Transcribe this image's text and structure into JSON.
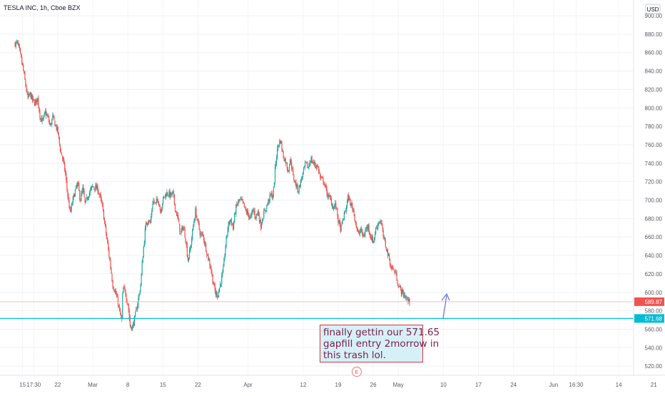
{
  "header": {
    "symbol_label": "TESLA INC, 1h, Cboe BZX",
    "currency_label": "USD"
  },
  "colors": {
    "up": "#26a69a",
    "down": "#ef5350",
    "support": "#00bcd4",
    "last_price_bg": "#ef5350",
    "annotation_border": "#d9363e",
    "annotation_bg": "#d6f0f7",
    "annotation_text": "#7a1f4a",
    "arrow": "#6f7bd8",
    "grid": "#eef0f3"
  },
  "price_axis": {
    "ticks": [
      "900.00",
      "880.00",
      "860.00",
      "840.00",
      "820.00",
      "800.00",
      "780.00",
      "760.00",
      "740.00",
      "720.00",
      "700.00",
      "680.00",
      "660.00",
      "640.00",
      "620.00",
      "600.00",
      "580.00",
      "560.00",
      "540.00",
      "520.00"
    ]
  },
  "time_axis": {
    "labels": [
      {
        "text": "15",
        "t": -14
      },
      {
        "text": "17:30",
        "t": -11.8
      },
      {
        "text": "22",
        "t": -7
      },
      {
        "text": "Mar",
        "t": 0
      },
      {
        "text": "8",
        "t": 7
      },
      {
        "text": "15",
        "t": 14
      },
      {
        "text": "22",
        "t": 21
      },
      {
        "text": "Apr",
        "t": 31
      },
      {
        "text": "12",
        "t": 42
      },
      {
        "text": "19",
        "t": 49
      },
      {
        "text": "26",
        "t": 56
      },
      {
        "text": "May",
        "t": 61
      },
      {
        "text": "10",
        "t": 70
      },
      {
        "text": "17",
        "t": 77
      },
      {
        "text": "24",
        "t": 84
      },
      {
        "text": "Jun",
        "t": 92
      },
      {
        "text": "16:30",
        "t": 96.5
      },
      {
        "text": "14",
        "t": 105
      },
      {
        "text": "21",
        "t": 112
      }
    ]
  },
  "price_labels": {
    "last_price": "589.87",
    "support_price": "571.68"
  },
  "earnings_marker": "E",
  "annotation": {
    "lines": [
      "finally gettin our 571.65",
      "gapfill entry 2morrow in",
      "this trash lol."
    ]
  },
  "chart_data": {
    "type": "candlestick",
    "title": "TESLA INC, 1h, Cboe BZX",
    "currency": "USD",
    "ylim": [
      510,
      910
    ],
    "horizontal_line": 571.68,
    "last_price": 589.87,
    "path": [
      [
        -15.5,
        870
      ],
      [
        -15,
        870
      ],
      [
        -14.5,
        858
      ],
      [
        -14,
        845
      ],
      [
        -13.5,
        828
      ],
      [
        -13,
        810
      ],
      [
        -12.5,
        815
      ],
      [
        -12,
        808
      ],
      [
        -11.5,
        805
      ],
      [
        -11,
        810
      ],
      [
        -10.5,
        790
      ],
      [
        -10,
        785
      ],
      [
        -9.5,
        795
      ],
      [
        -9,
        790
      ],
      [
        -8.5,
        780
      ],
      [
        -8,
        790
      ],
      [
        -7.5,
        782
      ],
      [
        -7,
        775
      ],
      [
        -6.5,
        755
      ],
      [
        -6,
        745
      ],
      [
        -5.5,
        730
      ],
      [
        -5,
        705
      ],
      [
        -4.5,
        685
      ],
      [
        -4,
        700
      ],
      [
        -3.5,
        710
      ],
      [
        -3,
        718
      ],
      [
        -2.5,
        700
      ],
      [
        -2,
        712
      ],
      [
        -1.5,
        695
      ],
      [
        -1,
        705
      ],
      [
        0,
        715
      ],
      [
        1,
        712
      ],
      [
        1.5,
        702
      ],
      [
        2,
        690
      ],
      [
        2.5,
        670
      ],
      [
        3,
        650
      ],
      [
        3.5,
        630
      ],
      [
        4,
        608
      ],
      [
        4.5,
        600
      ],
      [
        5,
        590
      ],
      [
        5.5,
        575
      ],
      [
        5.8,
        570
      ],
      [
        6,
        605
      ],
      [
        6.5,
        600
      ],
      [
        6.8,
        592
      ],
      [
        7,
        588
      ],
      [
        7.5,
        562
      ],
      [
        8,
        563
      ],
      [
        8.5,
        575
      ],
      [
        9,
        590
      ],
      [
        9.5,
        605
      ],
      [
        10,
        640
      ],
      [
        10.5,
        670
      ],
      [
        11,
        680
      ],
      [
        11.5,
        675
      ],
      [
        12,
        700
      ],
      [
        12.5,
        695
      ],
      [
        13,
        702
      ],
      [
        13.5,
        688
      ],
      [
        14,
        700
      ],
      [
        14.5,
        706
      ],
      [
        15,
        708
      ],
      [
        15.5,
        705
      ],
      [
        16,
        707
      ],
      [
        16.5,
        690
      ],
      [
        17,
        680
      ],
      [
        17.5,
        662
      ],
      [
        18,
        672
      ],
      [
        18.5,
        660
      ],
      [
        19,
        635
      ],
      [
        19.5,
        648
      ],
      [
        20,
        670
      ],
      [
        20.5,
        688
      ],
      [
        21,
        675
      ],
      [
        21.5,
        662
      ],
      [
        22,
        662
      ],
      [
        22.5,
        650
      ],
      [
        23,
        638
      ],
      [
        23.5,
        628
      ],
      [
        24,
        612
      ],
      [
        24.5,
        598
      ],
      [
        25,
        598
      ],
      [
        25.5,
        610
      ],
      [
        26,
        622
      ],
      [
        26.5,
        650
      ],
      [
        27,
        672
      ],
      [
        27.5,
        680
      ],
      [
        28,
        670
      ],
      [
        28.5,
        690
      ],
      [
        29,
        698
      ],
      [
        29.5,
        700
      ],
      [
        30,
        696
      ],
      [
        30.5,
        688
      ],
      [
        31,
        685
      ],
      [
        31.5,
        680
      ],
      [
        32,
        690
      ],
      [
        32.5,
        682
      ],
      [
        33,
        688
      ],
      [
        33.5,
        672
      ],
      [
        34,
        683
      ],
      [
        34.5,
        690
      ],
      [
        35,
        698
      ],
      [
        35.5,
        706
      ],
      [
        36,
        704
      ],
      [
        36.5,
        740
      ],
      [
        37,
        760
      ],
      [
        37.5,
        765
      ],
      [
        38,
        748
      ],
      [
        38.5,
        742
      ],
      [
        39,
        732
      ],
      [
        39.5,
        745
      ],
      [
        40,
        725
      ],
      [
        40.5,
        718
      ],
      [
        41,
        710
      ],
      [
        41.5,
        720
      ],
      [
        42,
        730
      ],
      [
        42.5,
        740
      ],
      [
        43,
        735
      ],
      [
        43.5,
        745
      ],
      [
        44,
        740
      ],
      [
        44.5,
        738
      ],
      [
        45,
        735
      ],
      [
        45.5,
        722
      ],
      [
        46,
        722
      ],
      [
        46.5,
        712
      ],
      [
        47,
        704
      ],
      [
        47.5,
        700
      ],
      [
        48,
        692
      ],
      [
        48.5,
        695
      ],
      [
        49,
        678
      ],
      [
        49.5,
        668
      ],
      [
        50,
        680
      ],
      [
        50.5,
        690
      ],
      [
        51,
        704
      ],
      [
        51.5,
        695
      ],
      [
        52,
        690
      ],
      [
        52.5,
        675
      ],
      [
        53,
        662
      ],
      [
        53.5,
        668
      ],
      [
        54,
        660
      ],
      [
        54.5,
        668
      ],
      [
        55,
        672
      ],
      [
        55.5,
        660
      ],
      [
        56,
        655
      ],
      [
        56.5,
        668
      ],
      [
        57,
        676
      ],
      [
        57.5,
        678
      ],
      [
        58,
        660
      ],
      [
        58.5,
        650
      ],
      [
        59,
        640
      ],
      [
        59.5,
        628
      ],
      [
        60,
        625
      ],
      [
        60.5,
        620
      ],
      [
        61,
        608
      ],
      [
        61.5,
        602
      ],
      [
        62,
        598
      ],
      [
        62.5,
        595
      ],
      [
        63,
        590
      ],
      [
        63.3,
        589.87
      ]
    ]
  }
}
